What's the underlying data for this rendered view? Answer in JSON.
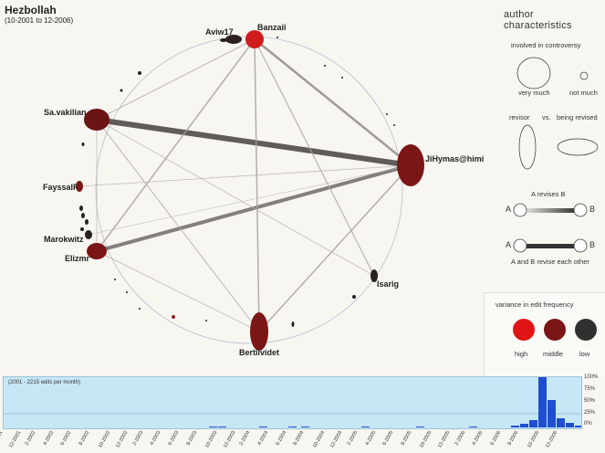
{
  "header": {
    "title": "Hezbollah",
    "subtitle": "(10-2001 to 12-2006)"
  },
  "nodes": [
    {
      "id": "banzaii",
      "label": "Banzaii",
      "color": "#d01c1c"
    },
    {
      "id": "aviw17",
      "label": "Aviw17",
      "color": "#2a2020"
    },
    {
      "id": "savakilian",
      "label": "Sa.vakilian",
      "color": "#6b1414"
    },
    {
      "id": "jihymas",
      "label": "JiHymas@himivest.com",
      "color": "#7a1616"
    },
    {
      "id": "fayssalf",
      "label": "FayssalF",
      "color": "#7a1616"
    },
    {
      "id": "marokwitz",
      "label": "Marokwitz",
      "color": "#2a2020"
    },
    {
      "id": "elizmr",
      "label": "Elizmr",
      "color": "#7a1616"
    },
    {
      "id": "isarig",
      "label": "Isarig",
      "color": "#2a2020"
    },
    {
      "id": "bertilvidet",
      "label": "Bertilvidet",
      "color": "#7a1616"
    }
  ],
  "edges": [
    {
      "from": "savakilian",
      "to": "jihymas",
      "weight": 6
    },
    {
      "from": "elizmr",
      "to": "jihymas",
      "weight": 4
    },
    {
      "from": "banzaii",
      "to": "jihymas",
      "weight": 2.5
    },
    {
      "from": "banzaii",
      "to": "elizmr",
      "weight": 1.5
    },
    {
      "from": "banzaii",
      "to": "bertilvidet",
      "weight": 1.5
    },
    {
      "from": "banzaii",
      "to": "isarig",
      "weight": 1.2
    },
    {
      "from": "banzaii",
      "to": "savakilian",
      "weight": 1
    },
    {
      "from": "bertilvidet",
      "to": "jihymas",
      "weight": 1.5
    },
    {
      "from": "savakilian",
      "to": "bertilvidet",
      "weight": 1
    },
    {
      "from": "fayssalf",
      "to": "jihymas",
      "weight": 0.8
    },
    {
      "from": "savakilian",
      "to": "isarig",
      "weight": 0.8
    },
    {
      "from": "marokwitz",
      "to": "jihymas",
      "weight": 0.6
    },
    {
      "from": "elizmr",
      "to": "bertilvidet",
      "weight": 0.8
    },
    {
      "from": "savakilian",
      "to": "elizmr",
      "weight": 0.8
    }
  ],
  "legend": {
    "title": "author characteristics",
    "controversy_label": "involved in controversy",
    "very_much": "very much",
    "not_much": "not much",
    "revisor": "revisor",
    "vs": "vs.",
    "being_revised": "being revised",
    "a_revises_b": "A revises B",
    "a": "A",
    "b": "B",
    "revise_each_other": "A and B revise each other",
    "variance_title": "variance in edit frequency",
    "high": "high",
    "middle": "middle",
    "low": "low",
    "colors": {
      "high": "#e01414",
      "middle": "#7a1616",
      "low": "#303030"
    }
  },
  "timeline": {
    "caption": "(2001 - 2215 edits per month)",
    "percent_labels": [
      "100%",
      "75%",
      "50%",
      "25%",
      "0%"
    ],
    "months": [
      "10-2001",
      "12-2001",
      "2-2002",
      "4-2002",
      "6-2002",
      "8-2002",
      "10-2002",
      "12-2002",
      "2-2003",
      "4-2003",
      "6-2003",
      "8-2003",
      "10-2003",
      "12-2003",
      "2-2004",
      "4-2004",
      "6-2004",
      "8-2004",
      "10-2004",
      "12-2004",
      "2-2005",
      "4-2005",
      "6-2005",
      "8-2005",
      "10-2005",
      "12-2005",
      "2-2006",
      "4-2006",
      "6-2006",
      "8-2006",
      "10-2006",
      "12-2006"
    ]
  }
}
